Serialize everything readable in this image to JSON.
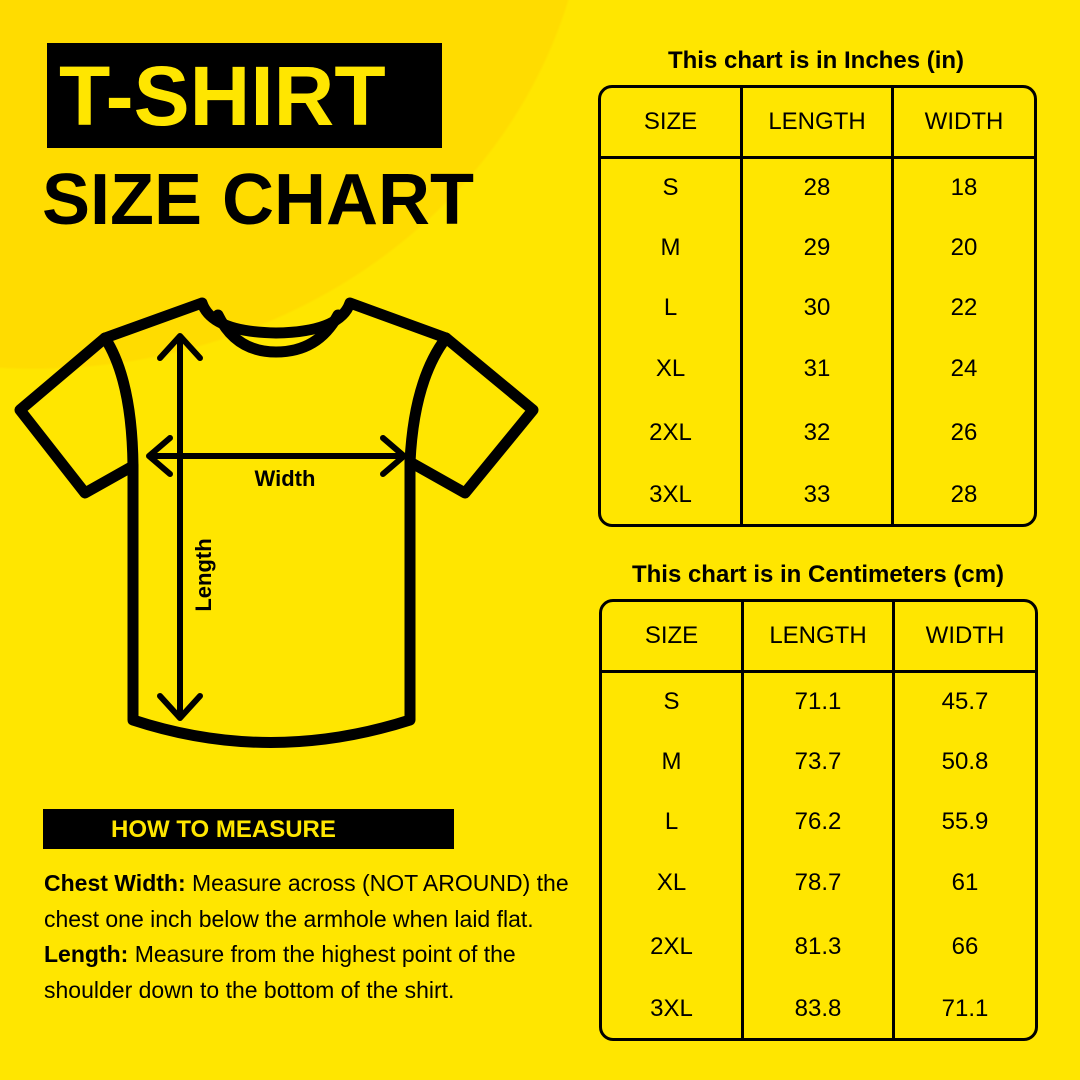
{
  "title": {
    "line1": "T-SHIRT",
    "line2": "SIZE CHART"
  },
  "diagram": {
    "width_label": "Width",
    "length_label": "Length"
  },
  "how_to_measure": {
    "heading": "HOW TO MEASURE",
    "chest_label": "Chest Width:",
    "chest_text": " Measure across (NOT AROUND) the chest one inch below the armhole when laid flat.",
    "length_label": "Length:",
    "length_text": " Measure from the highest point of the shoulder down to the bottom of the shirt."
  },
  "inches_table": {
    "caption": "This chart is in Inches (in)",
    "headers": [
      "SIZE",
      "LENGTH",
      "WIDTH"
    ],
    "rows": [
      [
        "S",
        "28",
        "18"
      ],
      [
        "M",
        "29",
        "20"
      ],
      [
        "L",
        "30",
        "22"
      ],
      [
        "XL",
        "31",
        "24"
      ],
      [
        "2XL",
        "32",
        "26"
      ],
      [
        "3XL",
        "33",
        "28"
      ]
    ]
  },
  "cm_table": {
    "caption": "This chart is in Centimeters (cm)",
    "headers": [
      "SIZE",
      "LENGTH",
      "WIDTH"
    ],
    "rows": [
      [
        "S",
        "71.1",
        "45.7"
      ],
      [
        "M",
        "73.7",
        "50.8"
      ],
      [
        "L",
        "76.2",
        "55.9"
      ],
      [
        "XL",
        "78.7",
        "61"
      ],
      [
        "2XL",
        "81.3",
        "66"
      ],
      [
        "3XL",
        "83.8",
        "71.1"
      ]
    ]
  },
  "colors": {
    "background": "#FFE600",
    "circle": "#FFDC00",
    "ink": "#000000"
  }
}
